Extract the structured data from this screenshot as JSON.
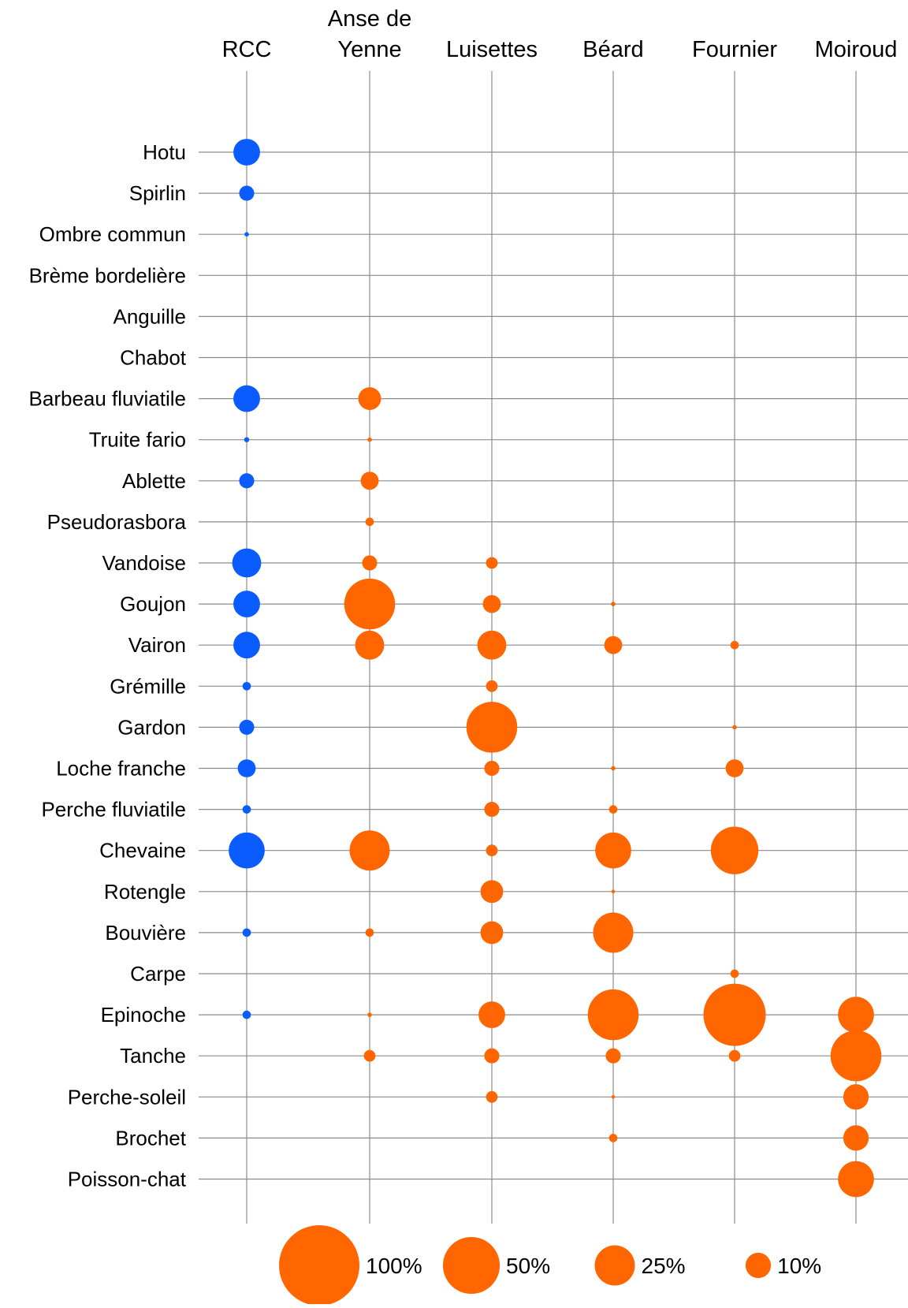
{
  "chart_data": {
    "type": "bubble",
    "columns": [
      {
        "name": "RCC",
        "label_lines": [
          "RCC"
        ]
      },
      {
        "name": "Anse de Yenne",
        "label_lines": [
          "Anse de",
          "Yenne"
        ]
      },
      {
        "name": "Luisettes",
        "label_lines": [
          "Luisettes"
        ]
      },
      {
        "name": "Béard",
        "label_lines": [
          "Béard"
        ]
      },
      {
        "name": "Fournier",
        "label_lines": [
          "Fournier"
        ]
      },
      {
        "name": "Moiroud",
        "label_lines": [
          "Moiroud"
        ]
      }
    ],
    "rows": [
      "Hotu",
      "Spirlin",
      "Ombre commun",
      "Brème bordelière",
      "Anguille",
      "Chabot",
      "Barbeau fluviatile",
      "Truite fario",
      "Ablette",
      "Pseudorasbora",
      "Vandoise",
      "Goujon",
      "Vairon",
      "Grémille",
      "Gardon",
      "Loche franche",
      "Perche fluviatile",
      "Chevaine",
      "Rotengle",
      "Bouvière",
      "Carpe",
      "Epinoche",
      "Tanche",
      "Perche-soleil",
      "Brochet",
      "Poisson-chat"
    ],
    "values": [
      [
        11,
        0,
        0,
        0,
        0,
        0
      ],
      [
        3.5,
        0,
        0,
        0,
        0,
        0
      ],
      [
        0.3,
        0,
        0,
        0,
        0,
        0
      ],
      [
        0,
        0,
        0,
        0,
        0,
        0
      ],
      [
        0,
        0,
        0,
        0,
        0,
        0
      ],
      [
        0,
        0,
        0,
        0,
        0,
        0
      ],
      [
        11,
        8,
        0,
        0,
        0,
        0
      ],
      [
        0.4,
        0.3,
        0,
        0,
        0,
        0
      ],
      [
        3.5,
        5,
        0,
        0,
        0,
        0
      ],
      [
        0,
        1.1,
        0,
        0,
        0,
        0
      ],
      [
        13,
        3.5,
        2.1,
        0,
        0,
        0
      ],
      [
        11,
        40,
        5,
        0.3,
        0,
        0
      ],
      [
        11,
        13,
        13,
        5,
        1.1,
        0
      ],
      [
        1.1,
        0,
        2.1,
        0,
        0,
        0
      ],
      [
        3.5,
        0,
        40,
        0,
        0.3,
        0
      ],
      [
        5,
        0,
        3.5,
        0.3,
        5,
        0
      ],
      [
        1.1,
        0,
        3.5,
        1.1,
        0,
        0
      ],
      [
        20,
        25,
        2.1,
        20,
        35,
        0
      ],
      [
        0,
        0,
        8,
        0.2,
        0,
        0
      ],
      [
        1.1,
        1.1,
        8,
        25,
        0,
        0
      ],
      [
        0,
        0,
        0,
        0,
        1.1,
        0
      ],
      [
        1.1,
        0.3,
        11,
        40,
        60,
        20
      ],
      [
        0,
        2.1,
        3.5,
        3.5,
        2.1,
        40
      ],
      [
        0,
        0,
        2.1,
        0.2,
        0,
        10
      ],
      [
        0,
        0,
        0,
        1.1,
        0,
        10
      ],
      [
        0,
        0,
        0,
        0,
        0,
        20
      ]
    ],
    "series_colors": {
      "RCC": "#0a5cff",
      "sites": "#ff6600"
    },
    "size_legend": [
      {
        "value": 100,
        "label": "100%"
      },
      {
        "value": 50,
        "label": "50%"
      },
      {
        "value": 25,
        "label": "25%"
      },
      {
        "value": 10,
        "label": "10%"
      }
    ],
    "gridline_color": "#8c8c8c",
    "grid": true
  }
}
